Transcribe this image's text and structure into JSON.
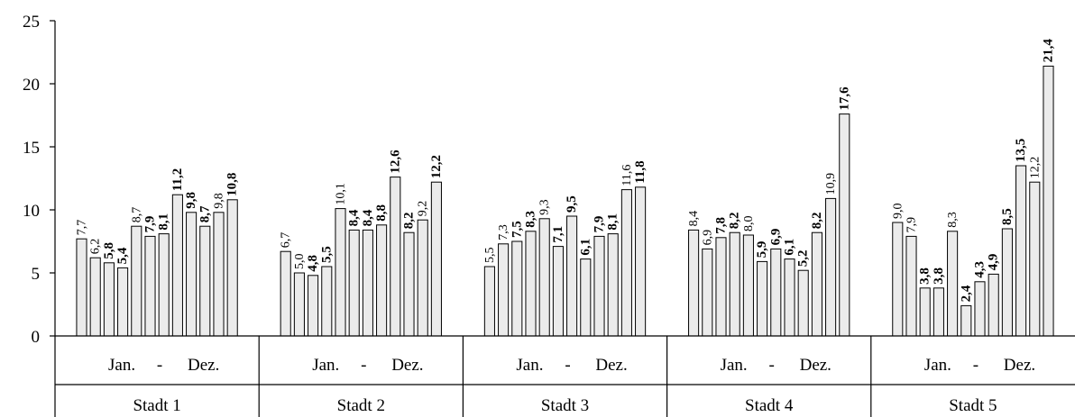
{
  "chart_data": {
    "type": "bar",
    "title": "",
    "xlabel": "",
    "ylabel": "",
    "ylim": [
      0,
      25
    ],
    "yticks": [
      0,
      5,
      10,
      15,
      20,
      25
    ],
    "grid": false,
    "bar_fill": "#ebebeb",
    "bar_stroke": "#000000",
    "groups": [
      {
        "name": "Stadt 1",
        "range_start": "Jan.",
        "range_sep": "-",
        "range_end": "Dez.",
        "values": [
          7.7,
          6.2,
          5.8,
          5.4,
          8.7,
          7.9,
          8.1,
          11.2,
          9.8,
          8.7,
          9.8,
          10.8
        ],
        "labels": [
          "7,7",
          "6,2",
          "5,8",
          "5,4",
          "8,7",
          "7,9",
          "8,1",
          "11,2",
          "9,8",
          "8,7",
          "9,8",
          "10,8"
        ],
        "bold": [
          false,
          false,
          true,
          true,
          false,
          true,
          true,
          true,
          true,
          true,
          false,
          true
        ]
      },
      {
        "name": "Stadt 2",
        "range_start": "Jan.",
        "range_sep": "-",
        "range_end": "Dez.",
        "values": [
          6.7,
          5.0,
          4.8,
          5.5,
          10.1,
          8.4,
          8.4,
          8.8,
          12.6,
          8.2,
          9.2,
          12.2
        ],
        "labels": [
          "6,7",
          "5,0",
          "4,8",
          "5,5",
          "10,1",
          "8,4",
          "8,4",
          "8,8",
          "12,6",
          "8,2",
          "9,2",
          "12,2"
        ],
        "bold": [
          false,
          false,
          true,
          true,
          false,
          true,
          true,
          true,
          true,
          true,
          false,
          true
        ]
      },
      {
        "name": "Stadt 3",
        "range_start": "Jan.",
        "range_sep": "-",
        "range_end": "Dez.",
        "values": [
          5.5,
          7.3,
          7.5,
          8.3,
          9.3,
          7.1,
          9.5,
          6.1,
          7.9,
          8.1,
          11.6,
          11.8
        ],
        "labels": [
          "5,5",
          "7,3",
          "7,5",
          "8,3",
          "9,3",
          "7,1",
          "9,5",
          "6,1",
          "7,9",
          "8,1",
          "11,6",
          "11,8"
        ],
        "bold": [
          false,
          false,
          true,
          true,
          false,
          true,
          true,
          true,
          true,
          true,
          false,
          true
        ]
      },
      {
        "name": "Stadt 4",
        "range_start": "Jan.",
        "range_sep": "-",
        "range_end": "Dez.",
        "values": [
          8.4,
          6.9,
          7.8,
          8.2,
          8.0,
          5.9,
          6.9,
          6.1,
          5.2,
          8.2,
          10.9,
          17.6
        ],
        "labels": [
          "8,4",
          "6,9",
          "7,8",
          "8,2",
          "8,0",
          "5,9",
          "6,9",
          "6,1",
          "5,2",
          "8,2",
          "10,9",
          "17,6"
        ],
        "bold": [
          false,
          false,
          true,
          true,
          false,
          true,
          true,
          true,
          true,
          true,
          false,
          true
        ]
      },
      {
        "name": "Stadt 5",
        "range_start": "Jan.",
        "range_sep": "-",
        "range_end": "Dez.",
        "values": [
          9.0,
          7.9,
          3.8,
          3.8,
          8.3,
          2.4,
          4.3,
          4.9,
          8.5,
          13.5,
          12.2,
          21.4
        ],
        "labels": [
          "9,0",
          "7,9",
          "3,8",
          "3,8",
          "8,3",
          "2,4",
          "4,3",
          "4,9",
          "8,5",
          "13,5",
          "12,2",
          "21,4"
        ],
        "bold": [
          false,
          false,
          true,
          true,
          false,
          true,
          true,
          true,
          true,
          true,
          false,
          true
        ]
      }
    ]
  }
}
